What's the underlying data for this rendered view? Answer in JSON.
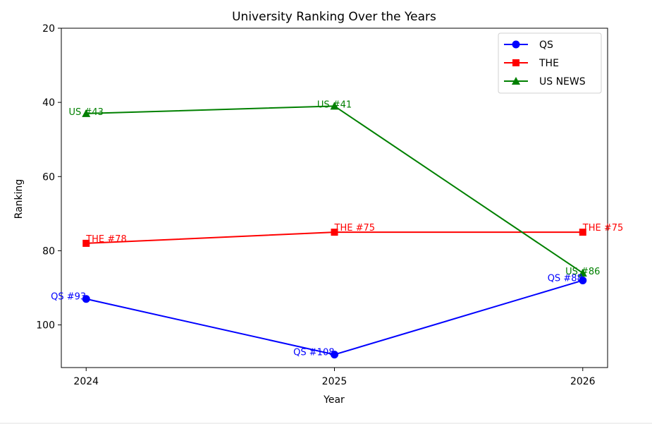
{
  "chart_data": {
    "type": "line",
    "title": "University Ranking Over the Years",
    "xlabel": "Year",
    "ylabel": "Ranking",
    "x": [
      2024,
      2025,
      2026
    ],
    "x_tick_labels": [
      "2024",
      "2025",
      "2026"
    ],
    "y_ticks": [
      20,
      40,
      60,
      80,
      100
    ],
    "ylim": [
      20,
      111.5
    ],
    "y_inverted": true,
    "grid": false,
    "legend_position": "top-right",
    "series": [
      {
        "name": "QS",
        "values": [
          93,
          108,
          88
        ],
        "color": "#0000ff",
        "marker": "circle",
        "labels": [
          "QS #93",
          "QS #108",
          "QS #88"
        ]
      },
      {
        "name": "THE",
        "values": [
          78,
          75,
          75
        ],
        "color": "#ff0000",
        "marker": "square",
        "labels": [
          "THE #78",
          "THE #75",
          "THE #75"
        ]
      },
      {
        "name": "US NEWS",
        "values": [
          43,
          41,
          86
        ],
        "color": "#008000",
        "marker": "triangle",
        "labels": [
          "US #43",
          "US #41",
          "US #86"
        ]
      }
    ]
  }
}
